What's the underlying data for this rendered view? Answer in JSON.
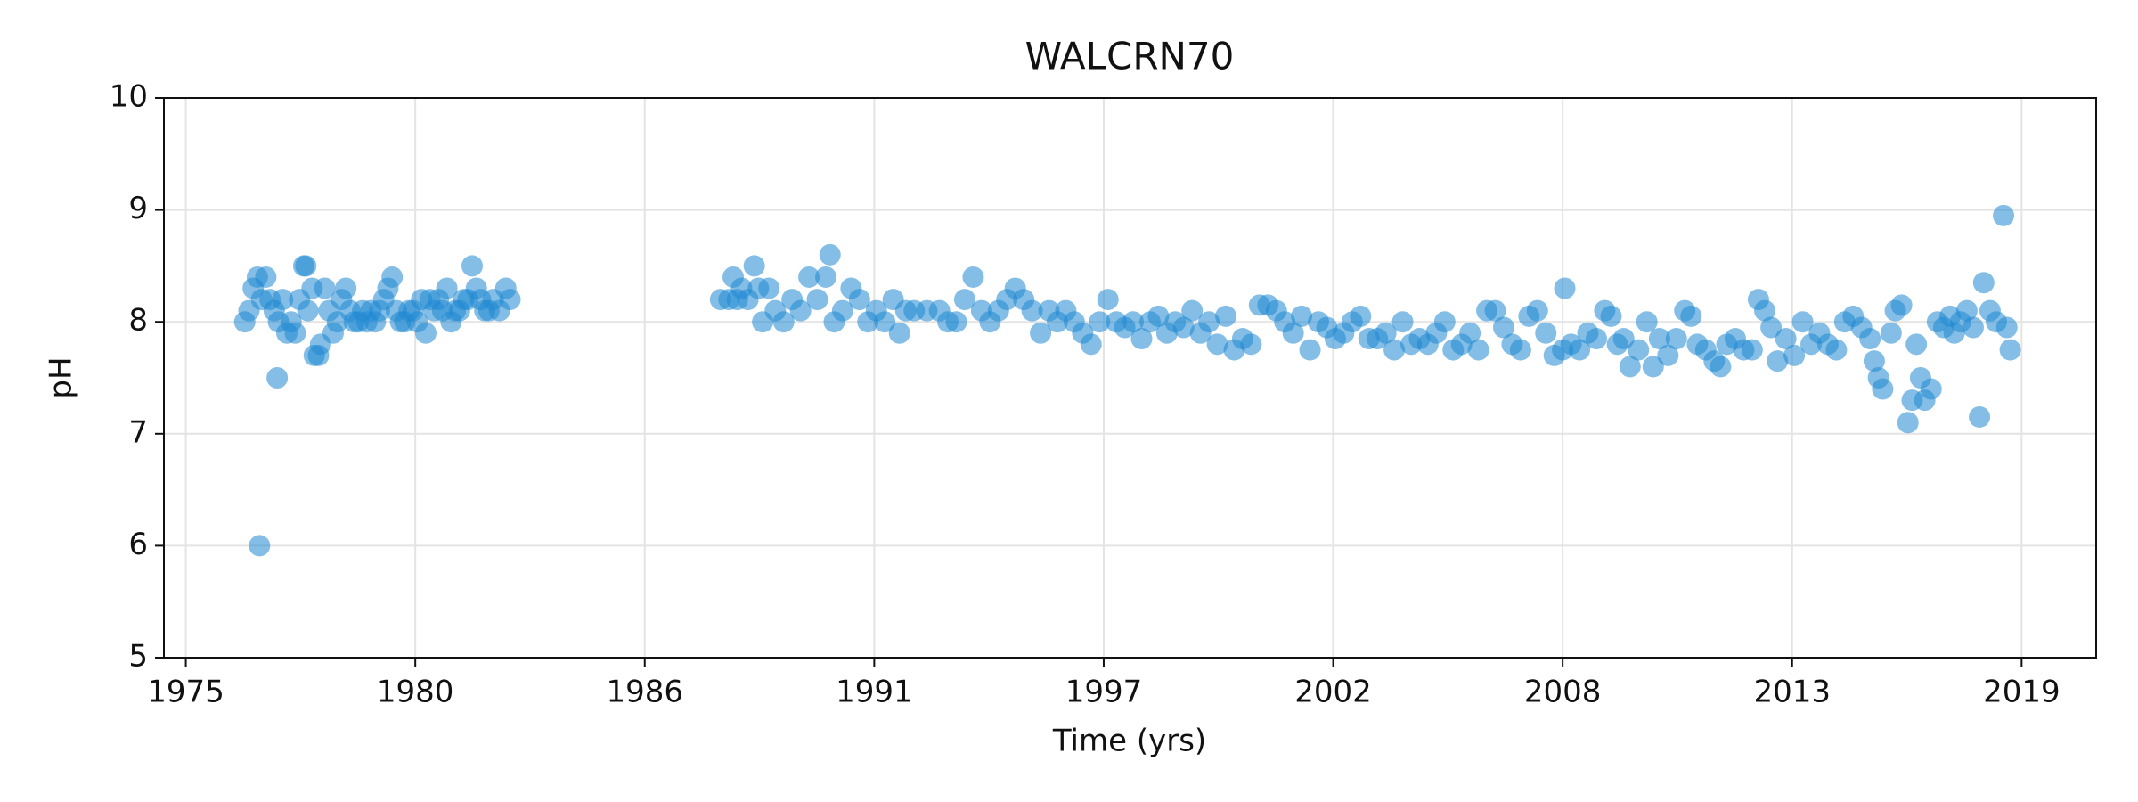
{
  "chart_data": {
    "type": "scatter",
    "title": "WALCRN70",
    "xlabel": "Time (yrs)",
    "ylabel": "pH",
    "color": "#1f88d2",
    "grid": true,
    "xlim": [
      1974.48,
      2020.37
    ],
    "ylim": [
      5,
      10
    ],
    "xticks": [
      {
        "value": 1975,
        "label": "1975"
      },
      {
        "value": 1980.45,
        "label": "1980"
      },
      {
        "value": 1985.9,
        "label": "1986"
      },
      {
        "value": 1991.35,
        "label": "1991"
      },
      {
        "value": 1996.8,
        "label": "1997"
      },
      {
        "value": 2002.25,
        "label": "2002"
      },
      {
        "value": 2007.7,
        "label": "2008"
      },
      {
        "value": 2013.15,
        "label": "2013"
      },
      {
        "value": 2018.6,
        "label": "2019"
      }
    ],
    "yticks": [
      5,
      6,
      7,
      8,
      9,
      10
    ],
    "x": [
      1976.4,
      1976.5,
      1976.6,
      1976.7,
      1976.75,
      1976.8,
      1976.9,
      1977.0,
      1977.1,
      1977.17,
      1977.2,
      1977.3,
      1977.4,
      1977.5,
      1977.6,
      1977.7,
      1977.8,
      1977.85,
      1977.9,
      1978.0,
      1978.05,
      1978.15,
      1978.2,
      1978.3,
      1978.4,
      1978.5,
      1978.6,
      1978.7,
      1978.8,
      1978.9,
      1979.0,
      1979.1,
      1979.2,
      1979.3,
      1979.4,
      1979.5,
      1979.6,
      1979.7,
      1979.8,
      1979.9,
      1980.0,
      1980.1,
      1980.2,
      1980.3,
      1980.4,
      1980.5,
      1980.6,
      1980.7,
      1980.8,
      1980.9,
      1981.0,
      1981.1,
      1981.2,
      1981.3,
      1981.4,
      1981.5,
      1981.6,
      1981.7,
      1981.8,
      1981.9,
      1982.0,
      1982.1,
      1982.2,
      1982.3,
      1982.45,
      1982.6,
      1982.7,
      1987.7,
      1987.9,
      1988.0,
      1988.1,
      1988.2,
      1988.35,
      1988.5,
      1988.6,
      1988.7,
      1988.85,
      1989.0,
      1989.2,
      1989.4,
      1989.6,
      1989.8,
      1990.0,
      1990.2,
      1990.3,
      1990.4,
      1990.6,
      1990.8,
      1991.0,
      1991.2,
      1991.4,
      1991.6,
      1991.8,
      1991.95,
      1992.1,
      1992.3,
      1992.6,
      1992.9,
      1993.1,
      1993.3,
      1993.5,
      1993.7,
      1993.9,
      1994.1,
      1994.3,
      1994.5,
      1994.7,
      1994.9,
      1995.1,
      1995.3,
      1995.5,
      1995.7,
      1995.9,
      1996.1,
      1996.3,
      1996.5,
      1996.7,
      1996.9,
      1997.1,
      1997.3,
      1997.5,
      1997.7,
      1997.9,
      1998.1,
      1998.3,
      1998.5,
      1998.7,
      1998.9,
      1999.1,
      1999.3,
      1999.5,
      1999.7,
      1999.9,
      2000.1,
      2000.3,
      2000.5,
      2000.7,
      2000.9,
      2001.1,
      2001.3,
      2001.5,
      2001.7,
      2001.9,
      2002.1,
      2002.3,
      2002.5,
      2002.7,
      2002.9,
      2003.1,
      2003.3,
      2003.5,
      2003.7,
      2003.9,
      2004.1,
      2004.3,
      2004.5,
      2004.7,
      2004.9,
      2005.1,
      2005.3,
      2005.5,
      2005.7,
      2005.9,
      2006.1,
      2006.3,
      2006.5,
      2006.7,
      2006.9,
      2007.1,
      2007.3,
      2007.5,
      2007.7,
      2007.75,
      2007.9,
      2008.1,
      2008.3,
      2008.5,
      2008.7,
      2008.85,
      2009.0,
      2009.15,
      2009.3,
      2009.5,
      2009.7,
      2009.85,
      2010.0,
      2010.2,
      2010.4,
      2010.6,
      2010.75,
      2010.9,
      2011.1,
      2011.3,
      2011.45,
      2011.6,
      2011.8,
      2012.0,
      2012.2,
      2012.35,
      2012.5,
      2012.65,
      2012.8,
      2013.0,
      2013.2,
      2013.4,
      2013.6,
      2013.8,
      2014.0,
      2014.2,
      2014.4,
      2014.6,
      2014.8,
      2015.0,
      2015.1,
      2015.2,
      2015.3,
      2015.5,
      2015.6,
      2015.75,
      2015.9,
      2016.0,
      2016.1,
      2016.2,
      2016.3,
      2016.45,
      2016.6,
      2016.75,
      2016.9,
      2017.0,
      2017.15,
      2017.3,
      2017.45,
      2017.6,
      2017.7,
      2017.85,
      2018.0,
      2018.17,
      2018.25,
      2018.33
    ],
    "values": [
      8.0,
      8.1,
      8.3,
      8.4,
      6.0,
      8.2,
      8.4,
      8.2,
      8.1,
      7.5,
      8.0,
      8.2,
      7.9,
      8.0,
      7.9,
      8.2,
      8.5,
      8.5,
      8.1,
      8.3,
      7.7,
      7.7,
      7.8,
      8.3,
      8.1,
      7.9,
      8.0,
      8.2,
      8.3,
      8.1,
      8.0,
      8.0,
      8.1,
      8.0,
      8.1,
      8.0,
      8.1,
      8.2,
      8.3,
      8.4,
      8.1,
      8.0,
      8.0,
      8.1,
      8.1,
      8.0,
      8.2,
      7.9,
      8.2,
      8.1,
      8.2,
      8.1,
      8.3,
      8.0,
      8.1,
      8.1,
      8.2,
      8.2,
      8.5,
      8.3,
      8.2,
      8.1,
      8.1,
      8.2,
      8.1,
      8.3,
      8.2,
      8.2,
      8.2,
      8.4,
      8.2,
      8.3,
      8.2,
      8.5,
      8.3,
      8.0,
      8.3,
      8.1,
      8.0,
      8.2,
      8.1,
      8.4,
      8.2,
      8.4,
      8.6,
      8.0,
      8.1,
      8.3,
      8.2,
      8.0,
      8.1,
      8.0,
      8.2,
      7.9,
      8.1,
      8.1,
      8.1,
      8.1,
      8.0,
      8.0,
      8.2,
      8.4,
      8.1,
      8.0,
      8.1,
      8.2,
      8.3,
      8.2,
      8.1,
      7.9,
      8.1,
      8.0,
      8.1,
      8.0,
      7.9,
      7.8,
      8.0,
      8.2,
      8.0,
      7.95,
      8.0,
      7.85,
      8.0,
      8.05,
      7.9,
      8.0,
      7.95,
      8.1,
      7.9,
      8.0,
      7.8,
      8.05,
      7.75,
      7.85,
      7.8,
      8.15,
      8.15,
      8.1,
      8.0,
      7.9,
      8.05,
      7.75,
      8.0,
      7.95,
      7.85,
      7.9,
      8.0,
      8.05,
      7.85,
      7.85,
      7.9,
      7.75,
      8.0,
      7.8,
      7.85,
      7.8,
      7.9,
      8.0,
      7.75,
      7.8,
      7.9,
      7.75,
      8.1,
      8.1,
      7.95,
      7.8,
      7.75,
      8.05,
      8.1,
      7.9,
      7.7,
      7.75,
      8.3,
      7.8,
      7.75,
      7.9,
      7.85,
      8.1,
      8.05,
      7.8,
      7.85,
      7.6,
      7.75,
      8.0,
      7.6,
      7.85,
      7.7,
      7.85,
      8.1,
      8.05,
      7.8,
      7.75,
      7.65,
      7.6,
      7.8,
      7.85,
      7.75,
      7.75,
      8.2,
      8.1,
      7.95,
      7.65,
      7.85,
      7.7,
      8.0,
      7.8,
      7.9,
      7.8,
      7.75,
      8.0,
      8.05,
      7.95,
      7.85,
      7.65,
      7.5,
      7.4,
      7.9,
      8.1,
      8.15,
      7.1,
      7.3,
      7.8,
      7.5,
      7.3,
      7.4,
      8.0,
      7.95,
      8.05,
      7.9,
      8.0,
      8.1,
      7.95,
      7.15,
      8.35,
      8.1,
      8.0,
      8.95,
      7.95,
      7.75
    ]
  }
}
